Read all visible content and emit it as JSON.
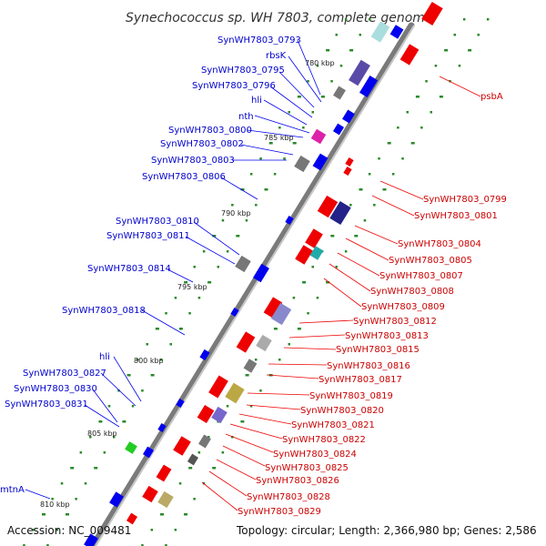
{
  "title": "Synechococcus sp. WH 7803, complete genome",
  "footer": {
    "accession": "Accession: NC_009481",
    "summary": "Topology: circular; Length: 2,366,980 bp; Genes: 2,586"
  },
  "colors": {
    "backbone": "#888888",
    "forward": "#0000ee",
    "reverse": "#ee0000",
    "tick": "#228822"
  },
  "kbp_marks": [
    "780 kbp",
    "785 kbp",
    "790 kbp",
    "795 kbp",
    "800 kbp",
    "805 kbp",
    "810 kbp"
  ],
  "left_genes": [
    "SynWH7803_0793",
    "rbsK",
    "SynWH7803_0795",
    "SynWH7803_0796",
    "hli",
    "nth",
    "SynWH7803_0800",
    "SynWH7803_0802",
    "SynWH7803_0803",
    "SynWH7803_0806",
    "SynWH7803_0810",
    "SynWH7803_0811",
    "SynWH7803_0814",
    "SynWH7803_0818",
    "hli",
    "SynWH7803_0827",
    "SynWH7803_0830",
    "SynWH7803_0831",
    "mtnA"
  ],
  "right_genes": [
    "psbA",
    "SynWH7803_0799",
    "SynWH7803_0801",
    "SynWH7803_0804",
    "SynWH7803_0805",
    "SynWH7803_0807",
    "SynWH7803_0808",
    "SynWH7803_0809",
    "SynWH7803_0812",
    "SynWH7803_0813",
    "SynWH7803_0815",
    "SynWH7803_0816",
    "SynWH7803_0817",
    "SynWH7803_0819",
    "SynWH7803_0820",
    "SynWH7803_0821",
    "SynWH7803_0822",
    "SynWH7803_0824",
    "SynWH7803_0825",
    "SynWH7803_0826",
    "SynWH7803_0828",
    "SynWH7803_0829"
  ]
}
